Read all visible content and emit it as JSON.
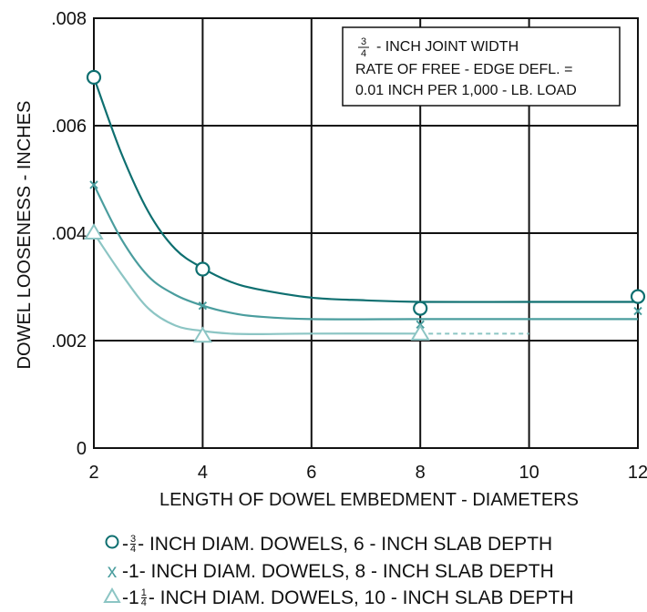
{
  "colors": {
    "series_a": "#0e6f70",
    "series_b": "#4a9d9e",
    "series_c": "#8cc5c4",
    "grid": "#111111",
    "extension": "#8cc5c4"
  },
  "chart_data": {
    "type": "line",
    "xlabel": "LENGTH OF DOWEL EMBEDMENT - DIAMETERS",
    "ylabel": "DOWEL LOOSENESS - INCHES",
    "xlim": [
      2,
      12
    ],
    "ylim": [
      0,
      0.008
    ],
    "x_ticks": [
      {
        "value": 2,
        "label": "2"
      },
      {
        "value": 4,
        "label": "4"
      },
      {
        "value": 6,
        "label": "6"
      },
      {
        "value": 8,
        "label": "8"
      },
      {
        "value": 10,
        "label": "10"
      },
      {
        "value": 12,
        "label": "12"
      }
    ],
    "y_ticks": [
      {
        "value": 0,
        "label": "0"
      },
      {
        "value": 0.002,
        "label": ".002"
      },
      {
        "value": 0.004,
        "label": ".004"
      },
      {
        "value": 0.006,
        "label": ".006"
      },
      {
        "value": 0.008,
        "label": ".008"
      }
    ],
    "grid": true,
    "series": [
      {
        "marker": "circle",
        "points": [
          [
            2,
            0.0069
          ],
          [
            4,
            0.00333
          ],
          [
            8,
            0.0026
          ],
          [
            12,
            0.00282
          ]
        ],
        "curve": [
          [
            2,
            0.0069
          ],
          [
            2.5,
            0.0055
          ],
          [
            3,
            0.0044
          ],
          [
            3.5,
            0.0037
          ],
          [
            4,
            0.00335
          ],
          [
            4.5,
            0.0031
          ],
          [
            5,
            0.00296
          ],
          [
            6,
            0.0028
          ],
          [
            7,
            0.00275
          ],
          [
            8,
            0.00272
          ],
          [
            10,
            0.00272
          ],
          [
            12,
            0.00272
          ]
        ]
      },
      {
        "marker": "x",
        "points": [
          [
            2,
            0.0049
          ],
          [
            4,
            0.00265
          ],
          [
            8,
            0.0023
          ],
          [
            12,
            0.00255
          ]
        ],
        "curve": [
          [
            2,
            0.0049
          ],
          [
            2.5,
            0.0039
          ],
          [
            3,
            0.0032
          ],
          [
            3.5,
            0.00285
          ],
          [
            4,
            0.00265
          ],
          [
            4.5,
            0.00252
          ],
          [
            5,
            0.00245
          ],
          [
            6,
            0.0024
          ],
          [
            8,
            0.0024
          ],
          [
            10,
            0.0024
          ],
          [
            12,
            0.0024
          ]
        ]
      },
      {
        "marker": "triangle",
        "points": [
          [
            2,
            0.004
          ],
          [
            4,
            0.00208
          ],
          [
            8,
            0.00212
          ]
        ],
        "curve": [
          [
            2,
            0.004
          ],
          [
            2.5,
            0.00325
          ],
          [
            3,
            0.0026
          ],
          [
            3.5,
            0.00228
          ],
          [
            4,
            0.00218
          ],
          [
            4.5,
            0.00213
          ],
          [
            5,
            0.00212
          ],
          [
            6,
            0.00213
          ],
          [
            8,
            0.00213
          ]
        ],
        "extension": [
          [
            8,
            0.00213
          ],
          [
            10,
            0.00213
          ]
        ]
      }
    ],
    "annotation": {
      "fraction_num": "3",
      "fraction_den": "4",
      "line1_rest": "- INCH JOINT WIDTH",
      "line2": "RATE OF FREE - EDGE DEFL. =",
      "line3": "0.01 INCH PER 1,000 - LB. LOAD"
    },
    "legend": [
      {
        "symbol": "O",
        "prefix": "- ",
        "whole": "",
        "frac_num": "3",
        "frac_den": "4",
        "text": " - INCH DIAM. DOWELS, 6 - INCH SLAB DEPTH"
      },
      {
        "symbol": "x",
        "prefix": " - ",
        "whole": "1",
        "frac_num": "",
        "frac_den": "",
        "text": " - INCH DIAM. DOWELS, 8 - INCH SLAB DEPTH"
      },
      {
        "symbol": "△",
        "prefix": "- ",
        "whole": "1",
        "frac_num": "1",
        "frac_den": "4",
        "text": "- INCH DIAM. DOWELS, 10 - INCH SLAB DEPTH"
      }
    ]
  }
}
